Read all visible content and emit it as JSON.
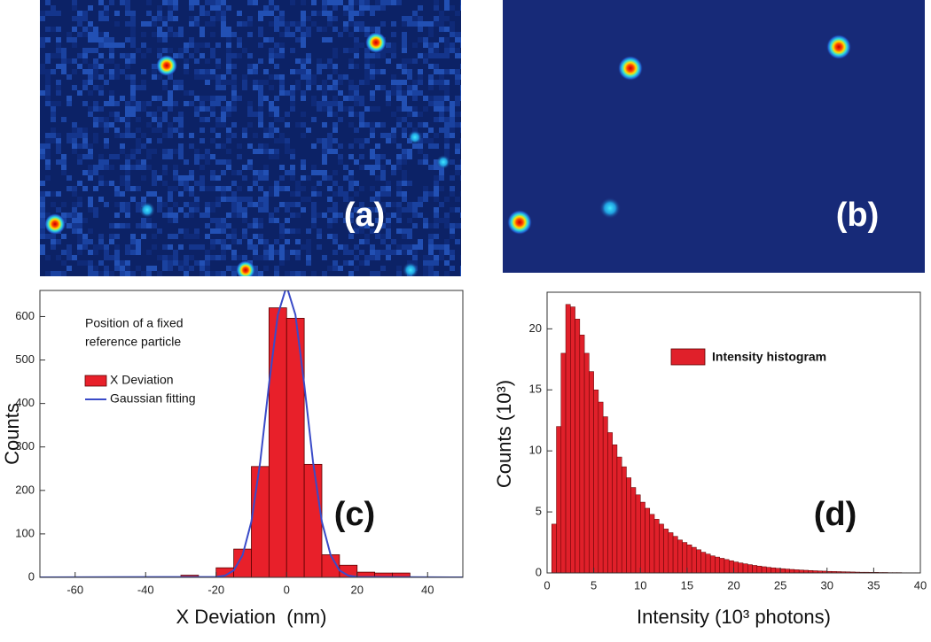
{
  "images": [
    {
      "label": "(a)"
    },
    {
      "label": "(b)"
    }
  ],
  "chart_data": [
    {
      "type": "histogram",
      "name": "X Deviation",
      "color": "#e8202a",
      "bins": [
        -30,
        -25,
        -20,
        -15,
        -10,
        -5,
        0,
        5,
        10,
        15,
        20,
        25,
        30,
        35
      ],
      "values": [
        5,
        0,
        22,
        65,
        255,
        620,
        596,
        260,
        52,
        28,
        12,
        10,
        10
      ],
      "fit": {
        "name": "Gaussian fitting",
        "color": "#3a4bc8",
        "x": [
          -70,
          -20,
          -17.5,
          -15,
          -12.5,
          -10,
          -7.5,
          -5,
          -2.5,
          0,
          2.5,
          5,
          7.5,
          10,
          12.5,
          15,
          17.5,
          20,
          50
        ],
        "values": [
          0,
          1,
          4,
          16,
          51,
          128,
          265,
          444,
          604,
          670,
          604,
          444,
          265,
          128,
          51,
          16,
          4,
          1,
          0
        ]
      },
      "xlim": [
        -70,
        50
      ],
      "xticks": [
        -60,
        -40,
        -20,
        0,
        20,
        40
      ],
      "ylim": [
        0,
        660
      ],
      "yticks": [
        0,
        100,
        200,
        300,
        400,
        500,
        600
      ],
      "x_label": "X Deviation  (nm)",
      "y_label": "Counts",
      "annotation": [
        "Position of a fixed",
        "reference particle"
      ],
      "panel_label": "(c)"
    },
    {
      "type": "histogram",
      "name": "Intensity histogram",
      "color": "#e0202a",
      "bins": [
        0.5,
        1,
        1.5,
        2,
        2.5,
        3,
        3.5,
        4,
        4.5,
        5,
        5.5,
        6,
        6.5,
        7,
        7.5,
        8,
        8.5,
        9,
        9.5,
        10,
        10.5,
        11,
        11.5,
        12,
        12.5,
        13,
        13.5,
        14,
        14.5,
        15,
        15.5,
        16,
        16.5,
        17,
        17.5,
        18,
        18.5,
        19,
        19.5,
        20,
        20.5,
        21,
        21.5,
        22,
        22.5,
        23,
        23.5,
        24,
        24.5,
        25,
        25.5,
        26,
        26.5,
        27,
        27.5,
        28,
        28.5,
        29,
        29.5,
        30,
        30.5,
        31,
        31.5,
        32,
        32.5,
        33,
        33.5,
        34,
        34.5,
        35,
        35.5,
        36,
        36.5,
        37,
        37.5,
        38,
        38.5,
        39,
        39.5,
        40
      ],
      "values": [
        4,
        12,
        18,
        22,
        21.8,
        20.8,
        19.5,
        18,
        16.5,
        15,
        14,
        12.8,
        11.5,
        10.5,
        9.5,
        8.7,
        7.8,
        7,
        6.4,
        5.8,
        5.3,
        4.8,
        4.4,
        4.0,
        3.6,
        3.3,
        3.0,
        2.7,
        2.5,
        2.3,
        2.1,
        1.9,
        1.7,
        1.55,
        1.4,
        1.3,
        1.2,
        1.1,
        1.0,
        0.9,
        0.82,
        0.75,
        0.68,
        0.62,
        0.56,
        0.51,
        0.46,
        0.42,
        0.38,
        0.35,
        0.32,
        0.29,
        0.26,
        0.24,
        0.22,
        0.2,
        0.18,
        0.16,
        0.15,
        0.13,
        0.12,
        0.11,
        0.1,
        0.09,
        0.08,
        0.07,
        0.06,
        0.06,
        0.05,
        0.05,
        0.04,
        0.04,
        0.03,
        0.03,
        0.03,
        0.02,
        0.02,
        0.02,
        0.02
      ],
      "xlim": [
        0,
        40
      ],
      "xticks": [
        0,
        5,
        10,
        15,
        20,
        25,
        30,
        35,
        40
      ],
      "ylim": [
        0,
        23
      ],
      "yticks": [
        0,
        5,
        10,
        15,
        20
      ],
      "x_label": "Intensity (10³ photons)",
      "y_label": "Counts (10³)",
      "panel_label": "(d)"
    }
  ]
}
